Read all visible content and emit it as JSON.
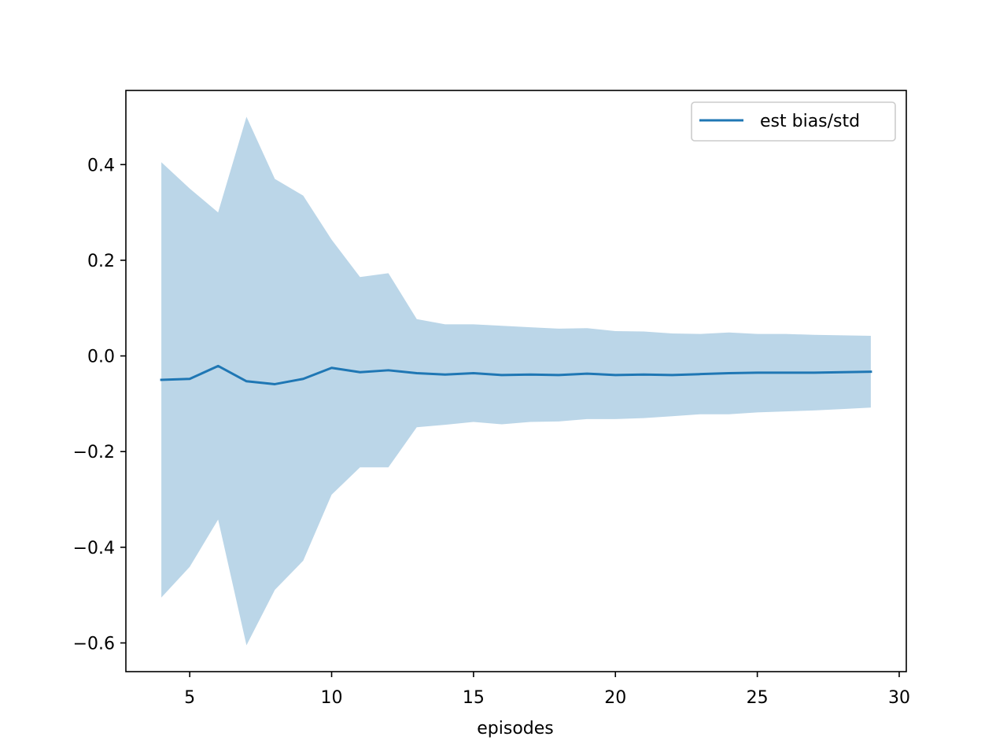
{
  "chart_data": {
    "type": "line",
    "title": "",
    "xlabel": "episodes",
    "ylabel": "",
    "xlim": [
      2.75,
      30.25
    ],
    "ylim": [
      -0.66,
      0.555
    ],
    "xticks": [
      5,
      10,
      15,
      20,
      25,
      30
    ],
    "yticks": [
      -0.6,
      -0.4,
      -0.2,
      0.0,
      0.2,
      0.4
    ],
    "xtick_labels": [
      "5",
      "10",
      "15",
      "20",
      "25",
      "30"
    ],
    "ytick_labels": [
      "−0.6",
      "−0.4",
      "−0.2",
      "0.0",
      "0.2",
      "0.4"
    ],
    "grid": false,
    "legend": {
      "placement": "upper right",
      "entries": [
        "est bias/std"
      ]
    },
    "colors": {
      "line": "#1f77b4",
      "band": "#1f77b4",
      "band_opacity": 0.3
    },
    "series": [
      {
        "name": "est bias/std",
        "x": [
          4,
          5,
          6,
          7,
          8,
          9,
          10,
          11,
          12,
          13,
          14,
          15,
          16,
          17,
          18,
          19,
          20,
          21,
          22,
          23,
          24,
          25,
          26,
          27,
          28,
          29
        ],
        "y": [
          -0.05,
          -0.048,
          -0.021,
          -0.053,
          -0.059,
          -0.048,
          -0.025,
          -0.034,
          -0.03,
          -0.036,
          -0.039,
          -0.036,
          -0.04,
          -0.039,
          -0.04,
          -0.037,
          -0.04,
          -0.039,
          -0.04,
          -0.038,
          -0.036,
          -0.035,
          -0.035,
          -0.035,
          -0.034,
          -0.033
        ],
        "upper": [
          0.405,
          0.35,
          0.3,
          0.5,
          0.37,
          0.335,
          0.243,
          0.165,
          0.173,
          0.077,
          0.066,
          0.066,
          0.063,
          0.06,
          0.057,
          0.058,
          0.052,
          0.051,
          0.047,
          0.046,
          0.049,
          0.046,
          0.046,
          0.044,
          0.043,
          0.042
        ],
        "lower": [
          -0.505,
          -0.441,
          -0.342,
          -0.605,
          -0.489,
          -0.428,
          -0.29,
          -0.233,
          -0.233,
          -0.149,
          -0.144,
          -0.138,
          -0.143,
          -0.138,
          -0.137,
          -0.132,
          -0.132,
          -0.13,
          -0.126,
          -0.122,
          -0.122,
          -0.118,
          -0.116,
          -0.114,
          -0.111,
          -0.108
        ]
      }
    ]
  }
}
